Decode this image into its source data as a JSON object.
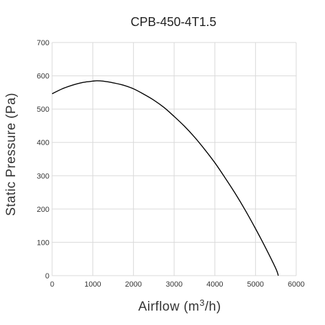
{
  "chart_data": {
    "type": "line",
    "title": "CPB-450-4T1.5",
    "xlabel": "Airflow (m³/h)",
    "xlabel_parts": {
      "pre": "Airflow (m",
      "sup": "3",
      "post": "/h)"
    },
    "ylabel": "Static Pressure (Pa)",
    "xlim": [
      0,
      6000
    ],
    "ylim": [
      0,
      700
    ],
    "xticks": [
      0,
      1000,
      2000,
      3000,
      4000,
      5000,
      6000
    ],
    "yticks": [
      0,
      100,
      200,
      300,
      400,
      500,
      600,
      700
    ],
    "grid": true,
    "series": [
      {
        "color": "#000000",
        "x": [
          0,
          250,
          500,
          750,
          1000,
          1100,
          1250,
          1500,
          1750,
          2000,
          2250,
          2500,
          2750,
          3000,
          3250,
          3500,
          3750,
          4000,
          4250,
          4500,
          4750,
          5000,
          5250,
          5500,
          5560
        ],
        "y": [
          546,
          561,
          572,
          580,
          584,
          585,
          584,
          579,
          572,
          561,
          545,
          527,
          505,
          478,
          449,
          416,
          379,
          339,
          294,
          247,
          196,
          141,
          83,
          21,
          0
        ]
      }
    ]
  }
}
